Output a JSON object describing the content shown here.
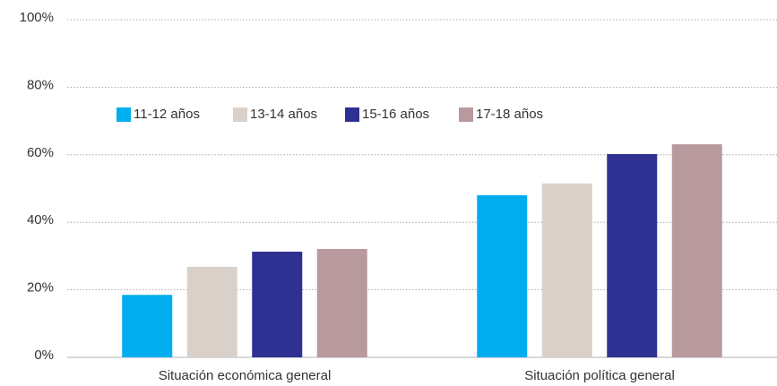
{
  "chart_data": {
    "type": "bar",
    "categories": [
      "Situación económica general",
      "Situación política general"
    ],
    "series": [
      {
        "name": "11-12 años",
        "color": "#00aeef",
        "values": [
          18.5,
          48
        ]
      },
      {
        "name": "13-14 años",
        "color": "#d9d0ca",
        "values": [
          26.8,
          51.5
        ]
      },
      {
        "name": "15-16 años",
        "color": "#2e3192",
        "values": [
          31.3,
          60.2
        ]
      },
      {
        "name": "17-18 años",
        "color": "#b89a9e",
        "values": [
          32.1,
          63.1
        ]
      }
    ],
    "ylim": [
      0,
      100
    ],
    "yticks": [
      {
        "value": 0,
        "label": "0%"
      },
      {
        "value": 20,
        "label": "20%"
      },
      {
        "value": 40,
        "label": "40%"
      },
      {
        "value": 60,
        "label": "60%"
      },
      {
        "value": 80,
        "label": "80%"
      },
      {
        "value": 100,
        "label": "100%"
      }
    ],
    "grid": true,
    "legend": "top-left"
  }
}
